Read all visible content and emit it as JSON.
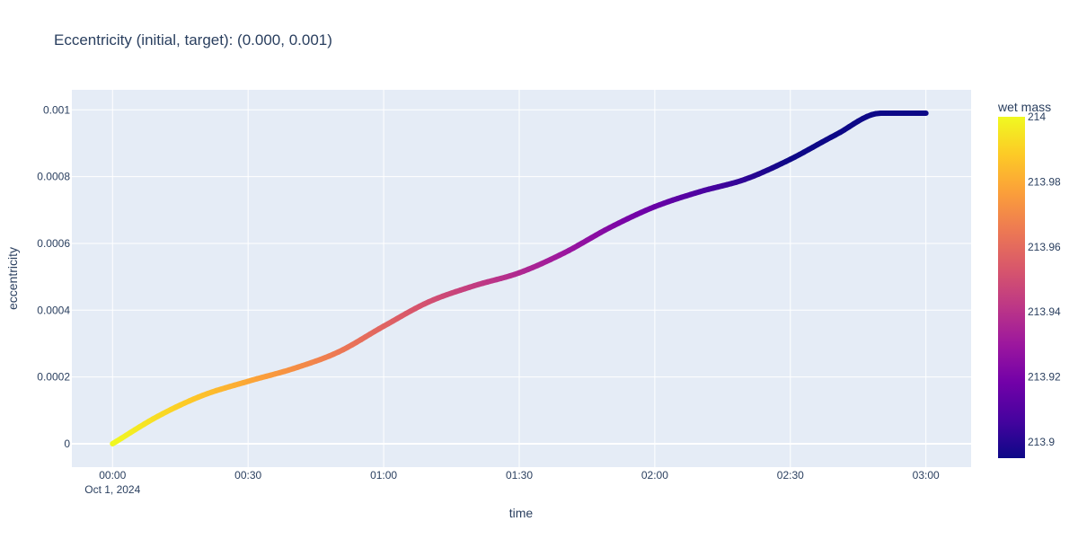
{
  "chart_data": {
    "type": "line",
    "title": "Eccentricity (initial, target): (0.000, 0.001)",
    "xlabel": "time",
    "ylabel": "eccentricity",
    "x_ticks": [
      {
        "minutes": 0,
        "label": "00:00",
        "sublabel": "Oct 1, 2024"
      },
      {
        "minutes": 30,
        "label": "00:30"
      },
      {
        "minutes": 60,
        "label": "01:00"
      },
      {
        "minutes": 90,
        "label": "01:30"
      },
      {
        "minutes": 120,
        "label": "02:00"
      },
      {
        "minutes": 150,
        "label": "02:30"
      },
      {
        "minutes": 180,
        "label": "03:00"
      }
    ],
    "xlim": [
      -9,
      190
    ],
    "y_ticks": [
      {
        "value": 0,
        "label": "0"
      },
      {
        "value": 0.0002,
        "label": "0.0002"
      },
      {
        "value": 0.0004,
        "label": "0.0004"
      },
      {
        "value": 0.0006,
        "label": "0.0006"
      },
      {
        "value": 0.0008,
        "label": "0.0008"
      },
      {
        "value": 0.001,
        "label": "0.001"
      }
    ],
    "ylim": [
      -7e-05,
      0.00106
    ],
    "grid": true,
    "series": [
      {
        "x_minutes": [
          0,
          10,
          20,
          30,
          40,
          50,
          60,
          70,
          80,
          90,
          100,
          110,
          120,
          130,
          140,
          150,
          160,
          170,
          178,
          180
        ],
        "y": [
          0.0,
          8.2e-05,
          0.000145,
          0.000187,
          0.000225,
          0.000275,
          0.000352,
          0.000425,
          0.000473,
          0.000512,
          0.000572,
          0.000647,
          0.00071,
          0.000755,
          0.000792,
          0.000852,
          0.000925,
          0.00099,
          0.00099,
          0.00099
        ],
        "color_value": [
          214.0,
          213.993,
          213.986,
          213.979,
          213.972,
          213.965,
          213.958,
          213.951,
          213.944,
          213.937,
          213.93,
          213.923,
          213.916,
          213.909,
          213.902,
          213.895,
          213.888,
          213.881,
          213.881,
          213.881
        ]
      }
    ],
    "colorbar": {
      "title": "wet mass",
      "range": [
        213.895,
        214.0
      ],
      "ticks": [
        {
          "value": 214,
          "label": "214"
        },
        {
          "value": 213.98,
          "label": "213.98"
        },
        {
          "value": 213.96,
          "label": "213.96"
        },
        {
          "value": 213.94,
          "label": "213.94"
        },
        {
          "value": 213.92,
          "label": "213.92"
        },
        {
          "value": 213.9,
          "label": "213.9"
        }
      ],
      "colorscale": [
        "#0d0887",
        "#46039f",
        "#7201a8",
        "#9c179e",
        "#bd3786",
        "#d8576b",
        "#ed7953",
        "#fb9f3a",
        "#fdca26",
        "#f0f921"
      ]
    }
  }
}
